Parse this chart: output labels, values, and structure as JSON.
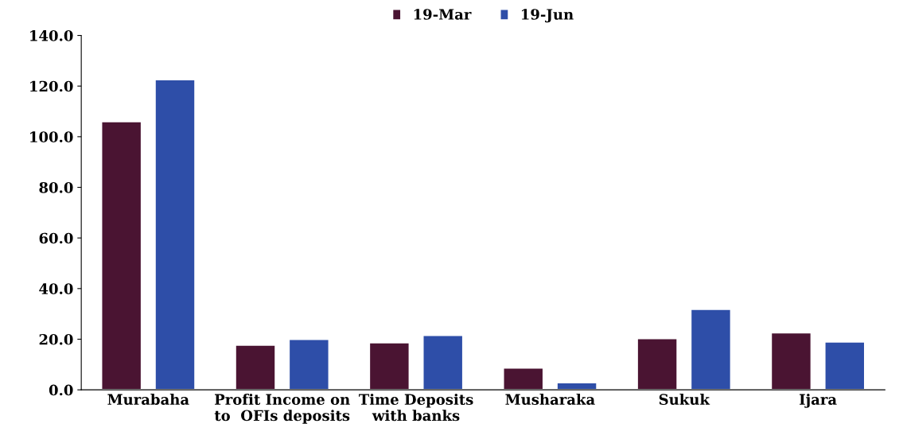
{
  "chart_data": {
    "type": "bar",
    "categories": [
      "Murabaha",
      "Profit Income on\nto  OFIs deposits",
      "Time Deposits\nwith banks",
      "Musharaka",
      "Sukuk",
      "Ijara"
    ],
    "series": [
      {
        "name": "19-Mar",
        "color": "#4a1432",
        "values": [
          106.0,
          17.7,
          18.7,
          8.7,
          20.3,
          22.6
        ]
      },
      {
        "name": "19-Jun",
        "color": "#2e4ea8",
        "values": [
          122.6,
          20.0,
          21.6,
          2.9,
          31.9,
          19.0
        ]
      }
    ],
    "ylim": [
      0,
      140
    ],
    "yticks": [
      {
        "value": 0,
        "label": "0.0"
      },
      {
        "value": 20,
        "label": "20.0"
      },
      {
        "value": 40,
        "label": "40.0"
      },
      {
        "value": 60,
        "label": "60.0"
      },
      {
        "value": 80,
        "label": "80.0"
      },
      {
        "value": 100,
        "label": "100.0"
      },
      {
        "value": 120,
        "label": "120.0"
      },
      {
        "value": 140,
        "label": "140.0"
      }
    ],
    "grid": false,
    "legend": "top"
  }
}
